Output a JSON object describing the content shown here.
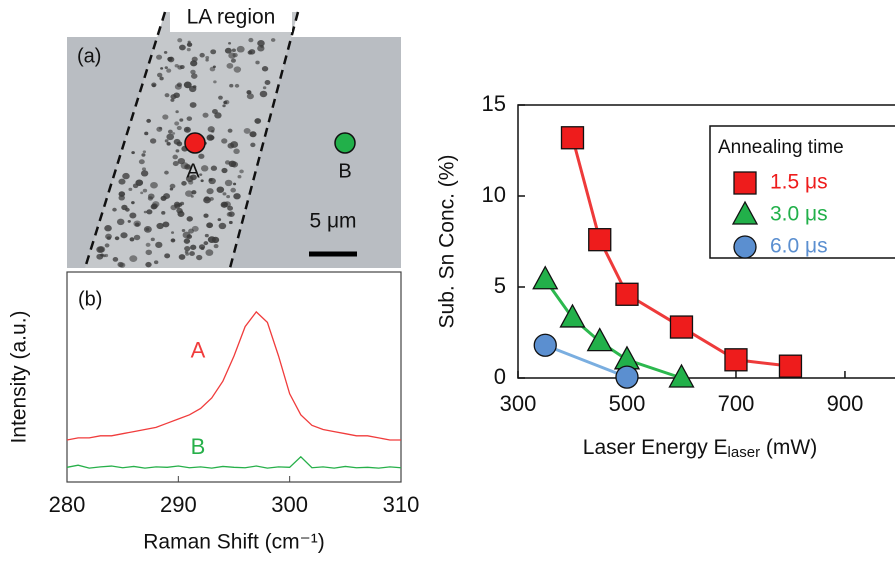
{
  "image_panel": {
    "label": "(a)",
    "region_label": "LA region",
    "point_a": "A",
    "point_b": "B",
    "scale_bar": "5 μm"
  },
  "chart_data": [
    {
      "type": "line",
      "panel_label": "(b)",
      "xlabel": "Raman Shift (cm⁻¹)",
      "ylabel": "Intensity (a.u.)",
      "xlim": [
        280,
        310
      ],
      "xticks": [
        280,
        290,
        300,
        310
      ],
      "ylim": [
        0,
        5
      ],
      "x": [
        280,
        281,
        282,
        283,
        284,
        285,
        286,
        287,
        288,
        289,
        290,
        291,
        292,
        293,
        294,
        295,
        296,
        297,
        298,
        299,
        300,
        301,
        302,
        303,
        304,
        305,
        306,
        307,
        308,
        309,
        310
      ],
      "series": [
        {
          "name": "A",
          "color": "#f03c3c",
          "values": [
            1.0,
            1.05,
            1.05,
            1.1,
            1.1,
            1.15,
            1.2,
            1.25,
            1.3,
            1.4,
            1.5,
            1.6,
            1.75,
            2.0,
            2.4,
            3.0,
            3.7,
            4.05,
            3.8,
            3.0,
            2.1,
            1.6,
            1.35,
            1.25,
            1.2,
            1.15,
            1.1,
            1.1,
            1.05,
            1.0,
            1.0
          ]
        },
        {
          "name": "B",
          "color": "#27b04a",
          "values": [
            0.35,
            0.4,
            0.33,
            0.36,
            0.38,
            0.34,
            0.37,
            0.33,
            0.36,
            0.35,
            0.38,
            0.34,
            0.36,
            0.33,
            0.37,
            0.35,
            0.34,
            0.38,
            0.33,
            0.36,
            0.35,
            0.6,
            0.34,
            0.36,
            0.33,
            0.37,
            0.34,
            0.35,
            0.33,
            0.36,
            0.34
          ]
        }
      ]
    },
    {
      "type": "scatter-line",
      "xlabel": {
        "text": "Laser Energy E",
        "sub": "laser",
        "unit": " (mW)"
      },
      "ylabel": "Sub. Sn Conc. (%)",
      "xlim": [
        300,
        990
      ],
      "xticks": [
        300,
        500,
        700,
        900
      ],
      "ylim": [
        0,
        15
      ],
      "yticks": [
        0,
        5,
        10,
        15
      ],
      "legend_title": "Annealing time",
      "series": [
        {
          "name": "1.5 μs",
          "color": "#ee1c1c",
          "line_color": "#ee3a3a",
          "marker": "square",
          "x": [
            400,
            450,
            500,
            600,
            700,
            800
          ],
          "values": [
            13.2,
            7.6,
            4.6,
            2.8,
            1.0,
            0.65
          ]
        },
        {
          "name": "3.0 μs",
          "color": "#22b04a",
          "line_color": "#2cb84e",
          "marker": "triangle",
          "x": [
            350,
            400,
            450,
            500,
            600
          ],
          "values": [
            5.4,
            3.3,
            2.0,
            1.0,
            0.0
          ]
        },
        {
          "name": "6.0 μs",
          "color": "#5b8fd0",
          "line_color": "#7aaee0",
          "marker": "circle",
          "x": [
            350,
            500
          ],
          "values": [
            1.8,
            0.05
          ]
        }
      ]
    }
  ]
}
